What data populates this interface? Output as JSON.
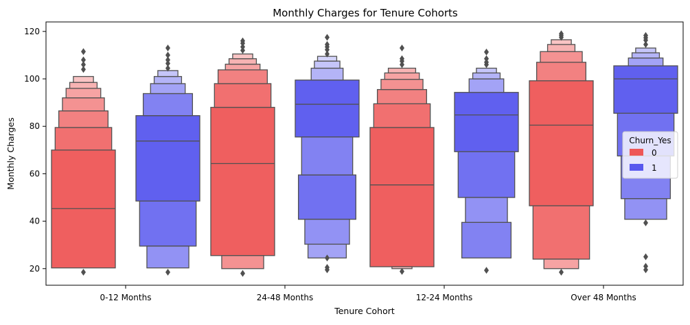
{
  "chart_data": {
    "type": "boxen",
    "title": "Monthly Charges for Tenure Cohorts",
    "xlabel": "Tenure Cohort",
    "ylabel": "Monthly Charges",
    "ylim": [
      13,
      124
    ],
    "yticks": [
      20,
      40,
      60,
      80,
      100,
      120
    ],
    "categories": [
      "0-12 Months",
      "24-48 Months",
      "12-24 Months",
      "Over 48 Months"
    ],
    "legend": {
      "title": "Churn_Yes",
      "position": "center-right"
    },
    "series": [
      {
        "name": "0",
        "color": "#ee5757",
        "groups": [
          {
            "median": 45.3,
            "boxes": [
              [
                20.3,
                70.0
              ],
              [
                70.0,
                79.5
              ],
              [
                79.5,
                86.5
              ],
              [
                86.5,
                92.0
              ],
              [
                92.0,
                96.0
              ],
              [
                96.0,
                98.5
              ],
              [
                98.5,
                101.0
              ]
            ],
            "outliers": [
              104,
              106,
              108,
              111.5,
              18.5
            ]
          },
          {
            "median": 64.3,
            "boxes": [
              [
                25.5,
                88.0
              ],
              [
                20.0,
                25.5
              ],
              [
                88.0,
                98.0
              ],
              [
                98.0,
                103.8
              ],
              [
                103.8,
                106.2
              ],
              [
                106.2,
                108.5
              ],
              [
                108.5,
                110.5
              ]
            ],
            "outliers": [
              112,
              113.5,
              115,
              116,
              18
            ]
          },
          {
            "median": 55.3,
            "boxes": [
              [
                20.8,
                79.5
              ],
              [
                20.0,
                20.8
              ],
              [
                79.5,
                89.5
              ],
              [
                89.5,
                95.5
              ],
              [
                95.5,
                99.8
              ],
              [
                99.8,
                102.5
              ],
              [
                102.5,
                104.5
              ]
            ],
            "outliers": [
              106,
              107.5,
              108.5,
              113,
              18.8
            ]
          },
          {
            "median": 80.5,
            "boxes": [
              [
                46.5,
                99.2
              ],
              [
                24.0,
                46.5
              ],
              [
                20.0,
                24.0
              ],
              [
                99.2,
                107.0
              ],
              [
                107.0,
                111.5
              ],
              [
                111.5,
                114.5
              ],
              [
                114.5,
                116.5
              ]
            ],
            "outliers": [
              117.5,
              118.3,
              119,
              18.5
            ]
          }
        ]
      },
      {
        "name": "1",
        "color": "#5858ee",
        "groups": [
          {
            "median": 73.8,
            "boxes": [
              [
                48.5,
                84.5
              ],
              [
                29.5,
                48.5
              ],
              [
                20.3,
                29.5
              ],
              [
                84.5,
                93.8
              ],
              [
                93.8,
                98.0
              ],
              [
                98.0,
                101.0
              ],
              [
                101.0,
                103.5
              ]
            ],
            "outliers": [
              104.5,
              106.5,
              108,
              110,
              113,
              18.5
            ]
          },
          {
            "median": 89.3,
            "boxes": [
              [
                75.5,
                99.5
              ],
              [
                59.5,
                75.5
              ],
              [
                40.8,
                59.5
              ],
              [
                30.3,
                40.8
              ],
              [
                24.5,
                30.3
              ],
              [
                99.5,
                104.5
              ],
              [
                104.5,
                107.5
              ],
              [
                107.5,
                109.5
              ]
            ],
            "outliers": [
              110.5,
              112.3,
              113.5,
              114.5,
              117.5,
              24.5,
              20.5,
              19.5
            ]
          },
          {
            "median": 84.8,
            "boxes": [
              [
                69.3,
                94.3
              ],
              [
                50.0,
                69.3
              ],
              [
                39.5,
                50.0
              ],
              [
                24.5,
                39.5
              ],
              [
                94.3,
                100.0
              ],
              [
                100.0,
                102.5
              ],
              [
                102.5,
                104.5
              ]
            ],
            "outliers": [
              106,
              107,
              108.5,
              111.3,
              19.3
            ]
          },
          {
            "median": 100.0,
            "boxes": [
              [
                85.5,
                105.5
              ],
              [
                67.5,
                85.5
              ],
              [
                49.5,
                67.5
              ],
              [
                40.8,
                49.5
              ],
              [
                105.5,
                108.8
              ],
              [
                108.8,
                111.0
              ],
              [
                111.0,
                113.0
              ]
            ],
            "outliers": [
              114.5,
              116.3,
              117.3,
              118.3,
              39.3,
              25,
              21,
              19.5
            ]
          }
        ]
      }
    ]
  }
}
